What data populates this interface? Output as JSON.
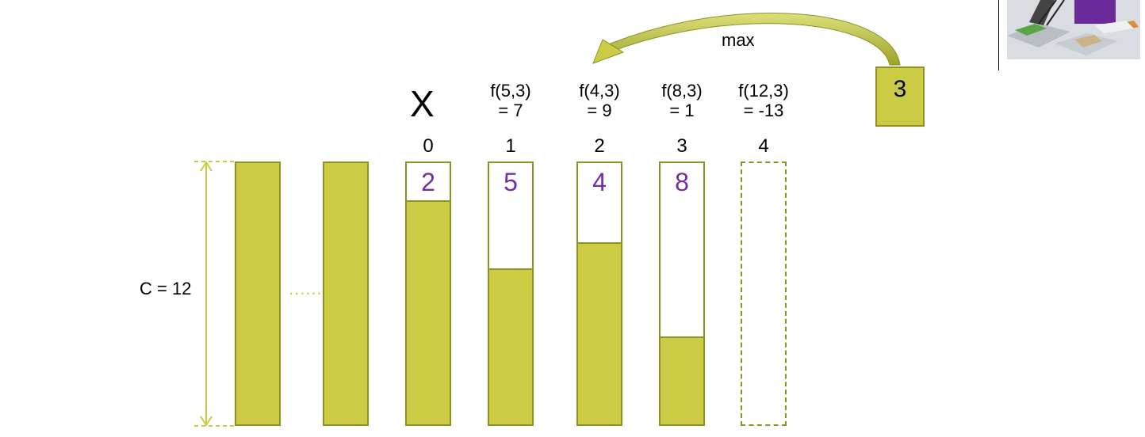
{
  "capacity_label": "C = 12",
  "dots": "......",
  "x_mark": "X",
  "max_label": "max",
  "current_item": "3",
  "bins": [
    {
      "index": "0",
      "value": "2",
      "fill_fraction": 0.85,
      "f_line1": "",
      "f_line2": ""
    },
    {
      "index": "1",
      "value": "5",
      "fill_fraction": 0.59,
      "f_line1": "f(5,3)",
      "f_line2": "= 7"
    },
    {
      "index": "2",
      "value": "4",
      "fill_fraction": 0.69,
      "f_line1": "f(4,3)",
      "f_line2": "= 9"
    },
    {
      "index": "3",
      "value": "8",
      "fill_fraction": 0.33,
      "f_line1": "f(8,3)",
      "f_line2": "= 1"
    },
    {
      "index": "4",
      "value": "",
      "fill_fraction": 0,
      "f_line1": "f(12,3)",
      "f_line2": "= -13"
    }
  ],
  "colors": {
    "fill": "#cccc44",
    "border": "#8c9226",
    "value": "#7030a0"
  }
}
